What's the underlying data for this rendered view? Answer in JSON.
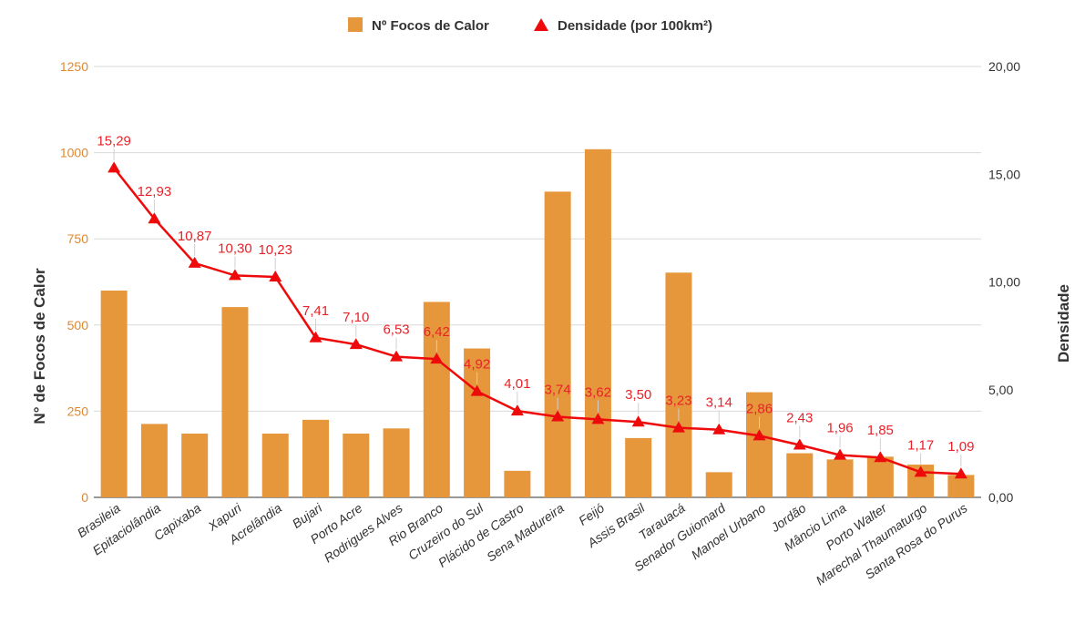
{
  "chart_data": {
    "type": "bar",
    "combo": "bar+line (dual axis)",
    "categories": [
      "Brasileia",
      "Epitaciolândia",
      "Capixaba",
      "Xapuri",
      "Acrelândia",
      "Bujari",
      "Porto Acre",
      "Rodrigues Alves",
      "Rio Branco",
      "Cruzeiro do Sul",
      "Plácido de Castro",
      "Sena Madureira",
      "Feijó",
      "Assis Brasil",
      "Tarauacá",
      "Senador Guiomard",
      "Manoel Urbano",
      "Jordão",
      "Mâncio Lima",
      "Porto Walter",
      "Marechal Thaumaturgo",
      "Santa Rosa do Purus"
    ],
    "series": [
      {
        "name": "Nº Focos de Calor",
        "type": "bar",
        "axis": "left",
        "color": "#e6963b",
        "values": [
          600,
          213,
          185,
          552,
          185,
          225,
          185,
          200,
          567,
          432,
          77,
          887,
          1010,
          172,
          652,
          73,
          305,
          128,
          110,
          118,
          95,
          65
        ]
      },
      {
        "name": "Densidade (por 100km²)",
        "type": "line",
        "axis": "right",
        "marker": "triangle",
        "color": "#ee0a0a",
        "values": [
          15.29,
          12.93,
          10.87,
          10.3,
          10.23,
          7.41,
          7.1,
          6.53,
          6.42,
          4.92,
          4.01,
          3.74,
          3.62,
          3.5,
          3.23,
          3.14,
          2.86,
          2.43,
          1.96,
          1.85,
          1.17,
          1.09
        ],
        "labels": [
          "15,29",
          "12,93",
          "10,87",
          "10,30",
          "10,23",
          "7,41",
          "7,10",
          "6,53",
          "6,42",
          "4,92",
          "4,01",
          "3,74",
          "3,62",
          "3,50",
          "3,23",
          "3,14",
          "2,86",
          "2,43",
          "1,96",
          "1,85",
          "1,17",
          "1,09"
        ]
      }
    ],
    "ylabel": "N° de Focos de Calor",
    "y2label": "Densidade",
    "ylim": [
      0,
      1250
    ],
    "y2lim": [
      0,
      20
    ],
    "yticks": [
      "0",
      "250",
      "500",
      "750",
      "1000",
      "1250"
    ],
    "y2ticks": [
      "0,00",
      "5,00",
      "10,00",
      "15,00",
      "20,00"
    ],
    "legend_position": "top-center",
    "grid": true,
    "left_tick_color": "#e0882f",
    "gridline_color": "#d9d9d9"
  }
}
